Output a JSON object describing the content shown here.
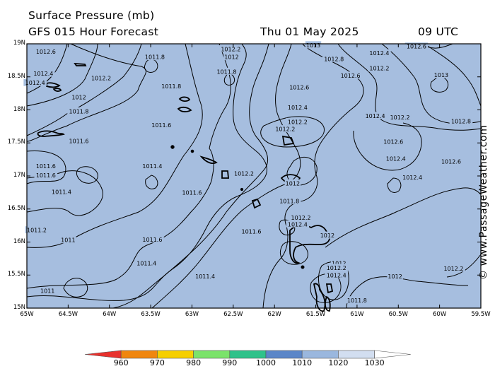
{
  "header": {
    "line1": "Surface Pressure (mb)",
    "line2": "GFS 015 Hour Forecast",
    "date": "Thu 01 May 2025",
    "time": "09 UTC"
  },
  "credit": "© www.PassageWeather.com",
  "map": {
    "ocean_color": "#a6bedf",
    "contour_color": "#000000",
    "lat_labels": [
      "19N",
      "18.5N",
      "18N",
      "17.5N",
      "17N",
      "16.5N",
      "16N",
      "15.5N",
      "15N"
    ],
    "lon_labels": [
      "65W",
      "64.5W",
      "64W",
      "63.5W",
      "63W",
      "62.5W",
      "62W",
      "61.5W",
      "61W",
      "60.5W",
      "60W",
      "59.5W"
    ],
    "contour_labels": [
      {
        "text": "1012.6",
        "lon": -64.77,
        "lat": 18.88
      },
      {
        "text": "1012.4",
        "lon": -64.8,
        "lat": 18.55
      },
      {
        "text": "1012.4",
        "lon": -64.9,
        "lat": 18.41
      },
      {
        "text": "1011.8",
        "lon": -63.45,
        "lat": 18.8
      },
      {
        "text": "1012.2",
        "lon": -64.1,
        "lat": 18.48
      },
      {
        "text": "1012.2",
        "lon": -62.53,
        "lat": 18.92
      },
      {
        "text": "1012",
        "lon": -62.52,
        "lat": 18.8
      },
      {
        "text": "1011.8",
        "lon": -62.58,
        "lat": 18.58
      },
      {
        "text": "1013",
        "lon": -61.53,
        "lat": 18.98
      },
      {
        "text": "1012.8",
        "lon": -61.28,
        "lat": 18.77
      },
      {
        "text": "1012.4",
        "lon": -60.73,
        "lat": 18.86
      },
      {
        "text": "1012.6",
        "lon": -60.28,
        "lat": 18.96
      },
      {
        "text": "1012.2",
        "lon": -60.73,
        "lat": 18.63
      },
      {
        "text": "1012.6",
        "lon": -61.08,
        "lat": 18.52
      },
      {
        "text": "1013",
        "lon": -59.98,
        "lat": 18.53
      },
      {
        "text": "1011.8",
        "lon": -63.25,
        "lat": 18.36
      },
      {
        "text": "1012.6",
        "lon": -61.7,
        "lat": 18.34
      },
      {
        "text": "1012",
        "lon": -64.37,
        "lat": 18.19
      },
      {
        "text": "1011.8",
        "lon": -64.37,
        "lat": 17.98
      },
      {
        "text": "1012.4",
        "lon": -61.72,
        "lat": 18.04
      },
      {
        "text": "1012.4",
        "lon": -60.78,
        "lat": 17.91
      },
      {
        "text": "1012.2",
        "lon": -60.48,
        "lat": 17.89
      },
      {
        "text": "1012.8",
        "lon": -59.74,
        "lat": 17.83
      },
      {
        "text": "1012.2",
        "lon": -61.72,
        "lat": 17.82
      },
      {
        "text": "1011.6",
        "lon": -63.37,
        "lat": 17.77
      },
      {
        "text": "1012.2",
        "lon": -61.87,
        "lat": 17.71
      },
      {
        "text": "1011.6",
        "lon": -64.37,
        "lat": 17.53
      },
      {
        "text": "1012.6",
        "lon": -60.56,
        "lat": 17.52
      },
      {
        "text": "1012.4",
        "lon": -60.53,
        "lat": 17.26
      },
      {
        "text": "1012.6",
        "lon": -59.86,
        "lat": 17.22
      },
      {
        "text": "1011.4",
        "lon": -63.48,
        "lat": 17.15
      },
      {
        "text": "1011.6",
        "lon": -64.77,
        "lat": 17.15
      },
      {
        "text": "1011.6",
        "lon": -64.77,
        "lat": 17.01
      },
      {
        "text": "1012.2",
        "lon": -62.37,
        "lat": 17.04
      },
      {
        "text": "1012.4",
        "lon": -60.33,
        "lat": 16.98
      },
      {
        "text": "1012",
        "lon": -61.78,
        "lat": 16.89
      },
      {
        "text": "1011.4",
        "lon": -64.58,
        "lat": 16.76
      },
      {
        "text": "1011.6",
        "lon": -63.0,
        "lat": 16.75
      },
      {
        "text": "1011.8",
        "lon": -61.82,
        "lat": 16.62
      },
      {
        "text": "1012.2",
        "lon": -61.68,
        "lat": 16.37
      },
      {
        "text": "1012.4",
        "lon": -61.72,
        "lat": 16.27
      },
      {
        "text": "1011.2",
        "lon": -64.88,
        "lat": 16.18
      },
      {
        "text": "1011.6",
        "lon": -62.28,
        "lat": 16.16
      },
      {
        "text": "1012",
        "lon": -61.36,
        "lat": 16.1
      },
      {
        "text": "1011",
        "lon": -64.5,
        "lat": 16.03
      },
      {
        "text": "1011.6",
        "lon": -63.48,
        "lat": 16.04
      },
      {
        "text": "1012",
        "lon": -61.22,
        "lat": 15.68
      },
      {
        "text": "1011.4",
        "lon": -63.55,
        "lat": 15.68
      },
      {
        "text": "1012.2",
        "lon": -61.25,
        "lat": 15.61
      },
      {
        "text": "1012.4",
        "lon": -61.25,
        "lat": 15.5
      },
      {
        "text": "1012.2",
        "lon": -59.83,
        "lat": 15.6
      },
      {
        "text": "1012",
        "lon": -60.54,
        "lat": 15.48
      },
      {
        "text": "1011.4",
        "lon": -62.84,
        "lat": 15.48
      },
      {
        "text": "1011",
        "lon": -64.75,
        "lat": 15.26
      },
      {
        "text": "1011.8",
        "lon": -61.0,
        "lat": 15.12
      }
    ]
  },
  "legend": {
    "ticks": [
      "960",
      "970",
      "980",
      "990",
      "1000",
      "1010",
      "1020",
      "1030"
    ],
    "colors": [
      "#e8312d",
      "#f0860e",
      "#f6cf00",
      "#7be36a",
      "#2fc28a",
      "#5b86c8",
      "#9ab7de",
      "#d2def0",
      "#ffffff"
    ]
  }
}
